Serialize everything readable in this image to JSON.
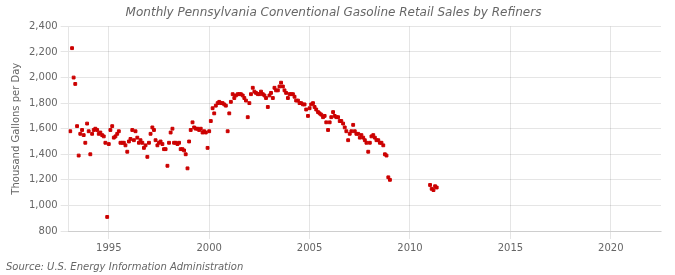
{
  "chart_data": {
    "type": "scatter",
    "title": "Monthly Pennsylvania Conventional Gasoline Retail Sales by Refiners",
    "ylabel": "Thousand Gallons per Day",
    "annotations": [
      "Source: U.S. Energy Information Administration"
    ],
    "color": "#cc0000",
    "marker": "square",
    "grid": true,
    "xlim": [
      1993.0,
      2022.5
    ],
    "xticks": [
      1995,
      2000,
      2005,
      2010,
      2015,
      2020
    ],
    "ylim": [
      800,
      2400
    ],
    "yticks": [
      800,
      {
        "value": 1000,
        "label": "1,000"
      },
      {
        "value": 1200,
        "label": "1,200"
      },
      {
        "value": 1400,
        "label": "1,400"
      },
      {
        "value": 1600,
        "label": "1,600"
      },
      {
        "value": 1800,
        "label": "1,800"
      },
      {
        "value": 2000,
        "label": "2,000"
      },
      {
        "value": 2200,
        "label": "2,200"
      },
      {
        "value": 2400,
        "label": "2,400"
      }
    ],
    "x": [
      1993.08,
      1993.17,
      1993.25,
      1993.33,
      1993.42,
      1993.5,
      1993.58,
      1993.67,
      1993.75,
      1993.83,
      1993.92,
      1994.0,
      1994.08,
      1994.17,
      1994.25,
      1994.33,
      1994.42,
      1994.5,
      1994.58,
      1994.67,
      1994.75,
      1994.83,
      1994.92,
      1995.0,
      1995.08,
      1995.17,
      1995.25,
      1995.33,
      1995.42,
      1995.5,
      1995.58,
      1995.67,
      1995.75,
      1995.83,
      1995.92,
      1996.0,
      1996.08,
      1996.17,
      1996.25,
      1996.33,
      1996.42,
      1996.5,
      1996.58,
      1996.67,
      1996.75,
      1996.83,
      1996.92,
      1997.0,
      1997.08,
      1997.17,
      1997.25,
      1997.33,
      1997.42,
      1997.5,
      1997.58,
      1997.67,
      1997.75,
      1997.83,
      1997.92,
      1998.0,
      1998.08,
      1998.17,
      1998.25,
      1998.33,
      1998.42,
      1998.5,
      1998.58,
      1998.67,
      1998.75,
      1998.83,
      1998.92,
      1999.0,
      1999.08,
      1999.17,
      1999.25,
      1999.33,
      1999.42,
      1999.5,
      1999.58,
      1999.67,
      1999.75,
      1999.83,
      1999.92,
      2000.0,
      2000.08,
      2000.17,
      2000.25,
      2000.33,
      2000.42,
      2000.5,
      2000.58,
      2000.67,
      2000.75,
      2000.83,
      2000.92,
      2001.0,
      2001.08,
      2001.17,
      2001.25,
      2001.33,
      2001.42,
      2001.5,
      2001.58,
      2001.67,
      2001.75,
      2001.83,
      2001.92,
      2002.0,
      2002.08,
      2002.17,
      2002.25,
      2002.33,
      2002.42,
      2002.5,
      2002.58,
      2002.67,
      2002.75,
      2002.83,
      2002.92,
      2003.0,
      2003.08,
      2003.17,
      2003.25,
      2003.33,
      2003.42,
      2003.5,
      2003.58,
      2003.67,
      2003.75,
      2003.83,
      2003.92,
      2004.0,
      2004.08,
      2004.17,
      2004.25,
      2004.33,
      2004.42,
      2004.5,
      2004.58,
      2004.67,
      2004.75,
      2004.83,
      2004.92,
      2005.0,
      2005.08,
      2005.17,
      2005.25,
      2005.33,
      2005.42,
      2005.5,
      2005.58,
      2005.67,
      2005.75,
      2005.83,
      2005.92,
      2006.0,
      2006.08,
      2006.17,
      2006.25,
      2006.33,
      2006.42,
      2006.5,
      2006.58,
      2006.67,
      2006.75,
      2006.83,
      2006.92,
      2007.0,
      2007.08,
      2007.17,
      2007.25,
      2007.33,
      2007.42,
      2007.5,
      2007.58,
      2007.67,
      2007.75,
      2007.83,
      2007.92,
      2008.0,
      2008.08,
      2008.17,
      2008.25,
      2008.33,
      2008.42,
      2008.5,
      2008.58,
      2008.67,
      2008.75,
      2008.83,
      2008.92,
      2009.0,
      2011.0,
      2011.08,
      2011.17,
      2011.25,
      2011.33
    ],
    "values": [
      1580,
      2230,
      2000,
      1950,
      1620,
      1390,
      1560,
      1590,
      1550,
      1490,
      1640,
      1580,
      1400,
      1560,
      1590,
      1600,
      1590,
      1560,
      1570,
      1550,
      1540,
      1490,
      910,
      1480,
      1590,
      1620,
      1530,
      1540,
      1560,
      1580,
      1490,
      1490,
      1490,
      1470,
      1420,
      1500,
      1520,
      1590,
      1510,
      1580,
      1530,
      1490,
      1510,
      1490,
      1450,
      1470,
      1380,
      1490,
      1560,
      1610,
      1590,
      1510,
      1470,
      1490,
      1500,
      1480,
      1440,
      1440,
      1310,
      1490,
      1570,
      1600,
      1490,
      1490,
      1480,
      1490,
      1440,
      1440,
      1430,
      1400,
      1290,
      1500,
      1590,
      1650,
      1610,
      1600,
      1600,
      1590,
      1600,
      1570,
      1580,
      1570,
      1450,
      1580,
      1660,
      1760,
      1720,
      1780,
      1800,
      1810,
      1800,
      1800,
      1790,
      1780,
      1580,
      1720,
      1810,
      1870,
      1840,
      1860,
      1870,
      1870,
      1870,
      1860,
      1840,
      1820,
      1690,
      1800,
      1870,
      1920,
      1890,
      1880,
      1870,
      1870,
      1890,
      1870,
      1860,
      1840,
      1770,
      1860,
      1880,
      1840,
      1920,
      1900,
      1900,
      1930,
      1960,
      1930,
      1900,
      1880,
      1840,
      1870,
      1870,
      1870,
      1850,
      1820,
      1820,
      1800,
      1800,
      1790,
      1790,
      1750,
      1700,
      1760,
      1790,
      1800,
      1770,
      1750,
      1730,
      1720,
      1710,
      1690,
      1700,
      1650,
      1590,
      1650,
      1690,
      1730,
      1700,
      1690,
      1690,
      1660,
      1660,
      1640,
      1610,
      1580,
      1510,
      1560,
      1580,
      1630,
      1580,
      1560,
      1560,
      1530,
      1550,
      1530,
      1510,
      1490,
      1420,
      1490,
      1540,
      1550,
      1530,
      1510,
      1510,
      1490,
      1490,
      1470,
      1400,
      1390,
      1220,
      1200,
      1160,
      1130,
      1120,
      1150,
      1140
    ]
  }
}
